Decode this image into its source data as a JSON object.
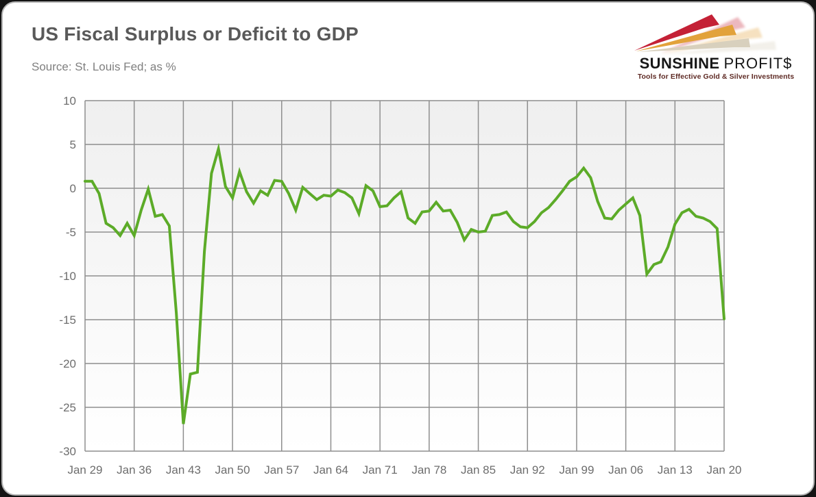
{
  "page": {
    "title": "US Fiscal Surplus or Deficit to GDP",
    "subtitle": "Source: St. Louis Fed; as %"
  },
  "logo": {
    "brand_bold": "SUNSHINE",
    "brand_light": "PROFIT$",
    "tagline": "Tools for Effective Gold & Silver Investments",
    "ray_colors": [
      "#c42136",
      "#e2a23b",
      "#d8d0bd"
    ],
    "text_color": "#161616",
    "tagline_color": "#5e2a24"
  },
  "chart_data": {
    "type": "line",
    "title": "US Fiscal Surplus or Deficit to GDP",
    "source": "St. Louis Fed",
    "unit": "%",
    "series_name": "US fiscal surplus or deficit to GDP (%)",
    "x_start_year": 1929,
    "x_end_year": 2020,
    "x_tick_years": [
      1929,
      1936,
      1943,
      1950,
      1957,
      1964,
      1971,
      1978,
      1985,
      1992,
      1999,
      2006,
      2013,
      2020
    ],
    "x_tick_labels": [
      "Jan 29",
      "Jan 36",
      "Jan 43",
      "Jan 50",
      "Jan 57",
      "Jan 64",
      "Jan 71",
      "Jan 78",
      "Jan 85",
      "Jan 92",
      "Jan 99",
      "Jan 06",
      "Jan 13",
      "Jan 20"
    ],
    "y_ticks": [
      10,
      5,
      0,
      -5,
      -10,
      -15,
      -20,
      -25,
      -30
    ],
    "ylim": [
      -30,
      10
    ],
    "grid": true,
    "legend": "none",
    "line_color": "#5cab28",
    "grid_color": "#8e8e8e",
    "plot_bg_top": "#efefef",
    "plot_bg_bottom": "#ffffff",
    "values": [
      0.8,
      0.8,
      -0.6,
      -4.0,
      -4.5,
      -5.4,
      -4.0,
      -5.4,
      -2.5,
      -0.1,
      -3.2,
      -3.0,
      -4.3,
      -14.2,
      -26.9,
      -21.2,
      -21.0,
      -7.2,
      1.7,
      4.5,
      0.2,
      -1.1,
      1.9,
      -0.4,
      -1.7,
      -0.3,
      -0.8,
      0.9,
      0.8,
      -0.6,
      -2.5,
      0.1,
      -0.6,
      -1.3,
      -0.8,
      -0.9,
      -0.2,
      -0.5,
      -1.1,
      -2.9,
      0.3,
      -0.3,
      -2.1,
      -2.0,
      -1.1,
      -0.4,
      -3.4,
      -4.0,
      -2.7,
      -2.6,
      -1.6,
      -2.6,
      -2.5,
      -3.9,
      -5.9,
      -4.7,
      -5.0,
      -4.9,
      -3.1,
      -3.0,
      -2.7,
      -3.8,
      -4.4,
      -4.5,
      -3.8,
      -2.8,
      -2.2,
      -1.3,
      -0.3,
      0.8,
      1.3,
      2.3,
      1.2,
      -1.5,
      -3.4,
      -3.5,
      -2.5,
      -1.8,
      -1.1,
      -3.1,
      -9.8,
      -8.7,
      -8.4,
      -6.7,
      -4.1,
      -2.8,
      -2.4,
      -3.2,
      -3.4,
      -3.8,
      -4.6,
      -14.9
    ]
  }
}
